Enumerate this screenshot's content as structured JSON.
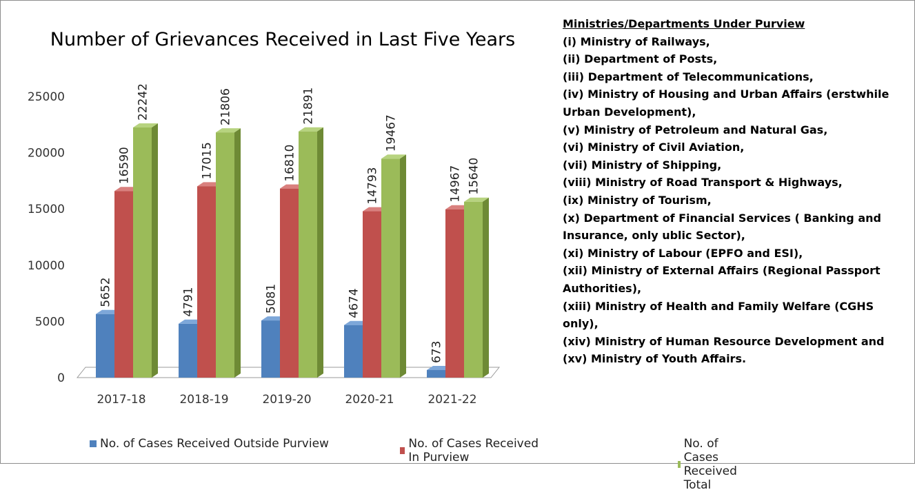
{
  "chart_data": {
    "type": "bar",
    "title": "Number of Grievances Received in Last Five Years",
    "categories": [
      "2017-18",
      "2018-19",
      "2019-20",
      "2020-21",
      "2021-22"
    ],
    "series": [
      {
        "name": "No. of Cases Received Outside Purview",
        "values": [
          5652,
          4791,
          5081,
          4674,
          673
        ],
        "color": "#4f81bd",
        "side": "#3a6696",
        "top": "#7da7d9"
      },
      {
        "name": "No. of Cases Received In Purview",
        "values": [
          16590,
          17015,
          16810,
          14793,
          14967
        ],
        "color": "#c0504d",
        "side": "#953735",
        "top": "#d9807e"
      },
      {
        "name": "No. of Cases Received Total",
        "values": [
          22242,
          21806,
          21891,
          19467,
          15640
        ],
        "color": "#9bbb59",
        "side": "#6e8a35",
        "top": "#b7d37f"
      }
    ],
    "ylim": [
      0,
      25000
    ],
    "yticks": [
      "0",
      "5000",
      "10000",
      "15000",
      "20000",
      "25000"
    ],
    "grid": false,
    "legend": "bottom"
  },
  "sidebar": {
    "heading": "Ministries/Departments  Under Purview",
    "lines": [
      "(i) Ministry of Railways,",
      "(ii) Department of Posts,",
      "(iii) Department of Telecommunications,",
      "(iv) Ministry of Housing and Urban Affairs (erstwhile Urban Development),",
      "(v) Ministry of Petroleum and Natural Gas,",
      "(vi) Ministry of Civil Aviation,",
      "(vii)  Ministry of Shipping,",
      "(viii)  Ministry of Road Transport  & Highways,",
      "(ix) Ministry of Tourism,",
      "(x) Department of Financial Services ( Banking and Insurance, only ublic Sector),",
      "(xi) Ministry of Labour (EPFO and ESI),",
      "(xii)  Ministry of External Affairs (Regional Passport Authorities),",
      "(xiii)  Ministry of Health and Family Welfare (CGHS only),",
      "(xiv)  Ministry of Human Resource Development and",
      "(xv) Ministry of Youth Affairs."
    ]
  }
}
